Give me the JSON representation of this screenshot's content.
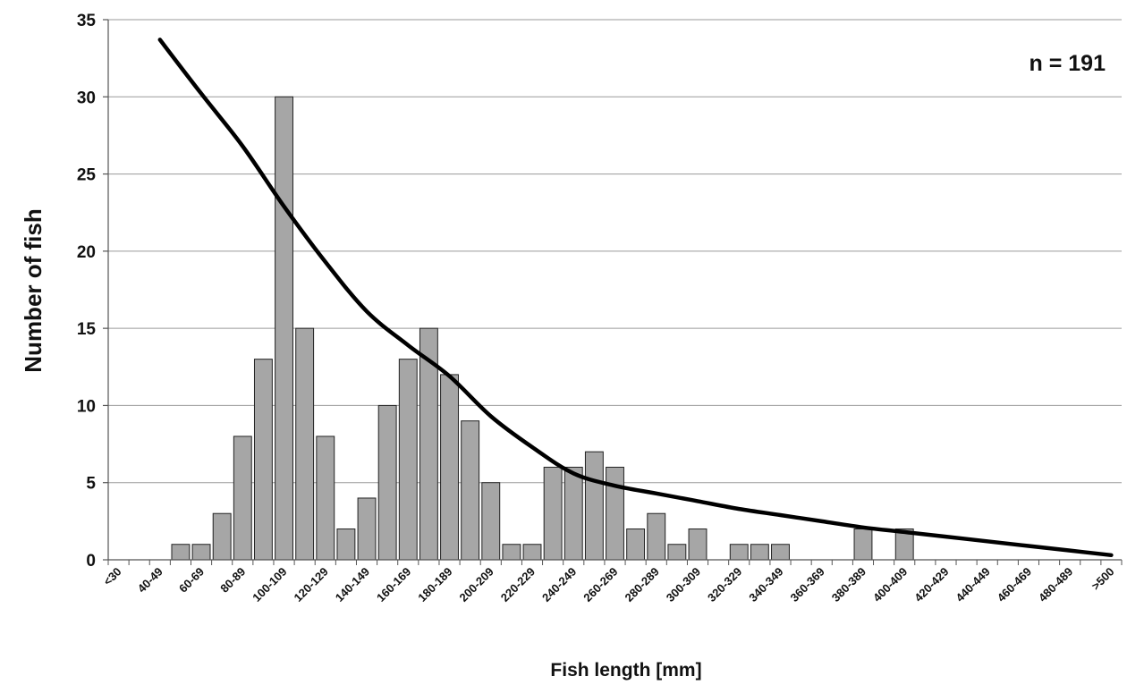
{
  "chart_data": {
    "type": "bar",
    "xlabel": "Fish length [mm]",
    "ylabel": "Number of fish",
    "annotation": "n = 191",
    "ylim": [
      0,
      35
    ],
    "yticks": [
      0,
      5,
      10,
      15,
      20,
      25,
      30,
      35
    ],
    "grid": true,
    "categories": [
      "<30",
      "30-39",
      "40-49",
      "50-59",
      "60-69",
      "70-79",
      "80-89",
      "90-99",
      "100-109",
      "110-119",
      "120-129",
      "130-139",
      "140-149",
      "150-159",
      "160-169",
      "170-179",
      "180-189",
      "190-199",
      "200-209",
      "210-219",
      "220-229",
      "230-239",
      "240-249",
      "250-259",
      "260-269",
      "270-279",
      "280-289",
      "290-299",
      "300-309",
      "310-319",
      "320-329",
      "330-339",
      "340-349",
      "350-359",
      "360-369",
      "370-379",
      "380-389",
      "390-399",
      "400-409",
      "410-419",
      "420-429",
      "430-439",
      "440-449",
      "450-459",
      "460-469",
      "470-479",
      "480-489",
      "490-499",
      ">500"
    ],
    "tick_labels": [
      "<30",
      "40-49",
      "60-69",
      "80-89",
      "100-109",
      "120-129",
      "140-149",
      "160-169",
      "180-189",
      "200-209",
      "220-229",
      "240-249",
      "260-269",
      "280-289",
      "300-309",
      "320-329",
      "340-349",
      "360-369",
      "380-389",
      "400-409",
      "420-429",
      "440-449",
      "460-469",
      "480-489",
      ">500"
    ],
    "series": [
      {
        "type": "bar",
        "values": [
          0,
          0,
          0,
          1,
          1,
          3,
          8,
          13,
          30,
          15,
          8,
          2,
          4,
          10,
          13,
          15,
          12,
          9,
          5,
          1,
          1,
          6,
          6,
          7,
          6,
          2,
          3,
          1,
          2,
          0,
          1,
          1,
          1,
          0,
          0,
          0,
          2,
          0,
          2,
          0,
          0,
          0,
          0,
          0,
          0,
          0,
          0,
          0,
          0
        ],
        "color": "#a6a6a6"
      },
      {
        "type": "line",
        "x": [
          "40-49",
          "60-69",
          "80-89",
          "100-109",
          "120-129",
          "140-149",
          "160-169",
          "180-189",
          "200-209",
          "220-229",
          "240-249",
          "260-269",
          "280-289",
          "300-309",
          "320-329",
          "340-349",
          "360-369",
          "380-389",
          "400-409",
          "420-429",
          "440-449",
          "460-469",
          "480-489",
          ">500"
        ],
        "values": [
          33.7,
          30.2,
          26.8,
          22.9,
          19.3,
          16.1,
          13.9,
          11.9,
          9.3,
          7.3,
          5.6,
          4.8,
          4.3,
          3.8,
          3.3,
          2.9,
          2.5,
          2.1,
          1.8,
          1.5,
          1.2,
          0.9,
          0.6,
          0.3
        ],
        "color": "#000000"
      }
    ]
  }
}
